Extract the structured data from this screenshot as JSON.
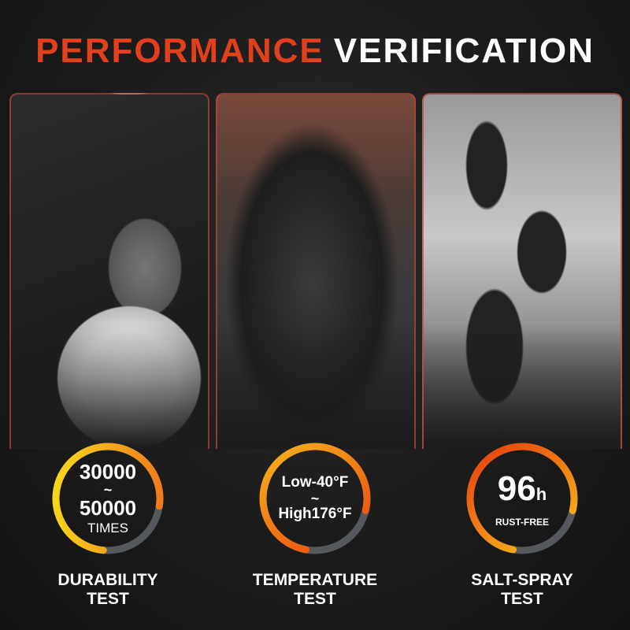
{
  "title": {
    "part1": "PERFORMANCE",
    "part2": "VERIFICATION"
  },
  "colors": {
    "accent": "#e2401c",
    "gauge_orange": "#f07a1a",
    "gauge_yellow": "#f7c51c",
    "gauge_gray": "#55585c"
  },
  "tests": [
    {
      "line1": "30000",
      "tilde": "~",
      "line2": "50000",
      "unit": "TIMES",
      "label1": "DURABILITY",
      "label2": "TEST"
    },
    {
      "line1": "Low-40°F",
      "tilde": "~",
      "line2": "High176°F",
      "label1": "TEMPERATURE",
      "label2": "TEST"
    },
    {
      "value": "96",
      "unit": "h",
      "sub": "RUST-FREE",
      "label1": "SALT-SPRAY",
      "label2": "TEST"
    }
  ]
}
